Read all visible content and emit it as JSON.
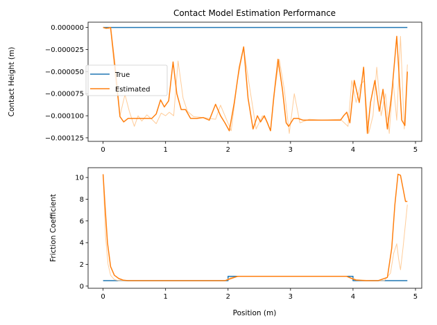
{
  "chart_data": [
    {
      "type": "line",
      "title": "Contact Model Estimation Performance",
      "xlabel": "",
      "ylabel": "Contact Height (m)",
      "xlim": [
        -0.24,
        5.1
      ],
      "ylim": [
        -0.000129,
        6e-06
      ],
      "xticks": [
        0,
        1,
        2,
        3,
        4,
        5
      ],
      "yticks": [
        0.0,
        -2.5e-05,
        -5e-05,
        -7.5e-05,
        -0.0001,
        -0.000125
      ],
      "ytick_labels": [
        "0.000000",
        "−0.000025",
        "−0.000050",
        "−0.000075",
        "−0.000100",
        "−0.000125"
      ],
      "grid": false,
      "legend": "center-left",
      "series": [
        {
          "name": "True",
          "color": "#1f77b4",
          "x": [
            0,
            4.87
          ],
          "y": [
            0,
            0
          ]
        },
        {
          "name": "",
          "color": "#ffcc99",
          "x": [
            0.0,
            0.12,
            0.2,
            0.27,
            0.35,
            0.42,
            0.5,
            0.56,
            0.62,
            0.7,
            0.78,
            0.85,
            0.93,
            1.0,
            1.06,
            1.13,
            1.2,
            1.28,
            1.35,
            1.45,
            1.6,
            1.8,
            1.88,
            1.95,
            2.05,
            2.15,
            2.25,
            2.35,
            2.45,
            2.55,
            2.6,
            2.68,
            2.75,
            2.82,
            2.9,
            2.98,
            3.06,
            3.15,
            3.3,
            3.5,
            3.8,
            3.92,
            3.98,
            4.05,
            4.12,
            4.18,
            4.25,
            4.32,
            4.38,
            4.45,
            4.52,
            4.58,
            4.64,
            4.7,
            4.76,
            4.82,
            4.87
          ],
          "y": [
            0.0,
            -2e-06,
            -6e-05,
            -0.0001,
            -7.6e-05,
            -9.5e-05,
            -0.000112,
            -0.0001,
            -0.000106,
            -9.9e-05,
            -0.000104,
            -0.000109,
            -9.7e-05,
            -0.0001,
            -9.6e-05,
            -0.0001,
            -3.8e-05,
            -8e-05,
            -9.5e-05,
            -0.000101,
            -0.000102,
            -0.000104,
            -8.8e-05,
            -0.0001,
            -0.000117,
            -6e-05,
            -2.3e-05,
            -7e-05,
            -0.000115,
            -0.0001,
            -0.000104,
            -0.000117,
            -7e-05,
            -3.6e-05,
            -7e-05,
            -0.00012,
            -7.5e-05,
            -0.000108,
            -0.000104,
            -0.000105,
            -0.000104,
            -0.000112,
            -6e-05,
            -8.5e-05,
            -6.5e-05,
            -6e-05,
            -0.00012,
            -0.0001,
            -4.5e-05,
            -0.0001,
            -7.5e-05,
            -0.00012,
            -6e-05,
            -0.000105,
            -1e-05,
            -0.000115,
            -4.2e-05
          ]
        },
        {
          "name": "Estimated",
          "color": "#ff7f0e",
          "x": [
            0.0,
            0.05,
            0.12,
            0.2,
            0.27,
            0.33,
            0.4,
            0.47,
            0.55,
            0.62,
            0.7,
            0.78,
            0.85,
            0.92,
            0.98,
            1.05,
            1.12,
            1.18,
            1.25,
            1.32,
            1.4,
            1.5,
            1.6,
            1.7,
            1.8,
            1.88,
            1.95,
            2.02,
            2.1,
            2.18,
            2.25,
            2.32,
            2.4,
            2.47,
            2.52,
            2.58,
            2.63,
            2.68,
            2.73,
            2.8,
            2.87,
            2.93,
            2.97,
            3.05,
            3.12,
            3.2,
            3.3,
            3.4,
            3.5,
            3.6,
            3.7,
            3.8,
            3.85,
            3.9,
            3.95,
            4.02,
            4.1,
            4.17,
            4.23,
            4.28,
            4.35,
            4.42,
            4.48,
            4.55,
            4.62,
            4.7,
            4.78,
            4.83,
            4.87
          ],
          "y": [
            0.0,
            -1e-06,
            0.0,
            -5e-05,
            -0.000101,
            -0.000107,
            -0.000103,
            -0.000103,
            -0.000103,
            -0.000103,
            -0.000103,
            -0.000103,
            -9.8e-05,
            -8.2e-05,
            -9e-05,
            -8.3e-05,
            -3.9e-05,
            -7.5e-05,
            -9.3e-05,
            -9.3e-05,
            -0.000103,
            -0.000103,
            -0.000102,
            -0.000105,
            -8.7e-05,
            -0.0001,
            -0.000108,
            -0.000117,
            -8.5e-05,
            -4.5e-05,
            -2.2e-05,
            -8e-05,
            -0.000115,
            -0.0001,
            -0.000107,
            -0.0001,
            -0.000108,
            -0.000117,
            -8e-05,
            -3.6e-05,
            -7e-05,
            -0.000108,
            -0.000112,
            -0.000103,
            -0.000103,
            -0.000105,
            -0.000105,
            -0.000105,
            -0.000105,
            -0.000105,
            -0.000105,
            -0.000105,
            -0.0001,
            -9.6e-05,
            -0.000108,
            -6e-05,
            -8.5e-05,
            -4.5e-05,
            -0.00012,
            -8.5e-05,
            -6e-05,
            -9.5e-05,
            -7e-05,
            -0.000115,
            -7.5e-05,
            -1e-05,
            -0.000105,
            -0.000111,
            -5e-05
          ]
        }
      ]
    },
    {
      "type": "line",
      "title": "",
      "xlabel": "Position (m)",
      "ylabel": "Friction Coefficient",
      "xlim": [
        -0.24,
        5.1
      ],
      "ylim": [
        -0.2,
        10.9
      ],
      "xticks": [
        0,
        1,
        2,
        3,
        4,
        5
      ],
      "yticks": [
        0,
        2,
        4,
        6,
        8,
        10
      ],
      "grid": false,
      "series": [
        {
          "name": "",
          "color": "#1f77b4",
          "x": [
            0,
            2.0,
            2.0,
            4.0,
            4.0,
            4.87
          ],
          "y": [
            0.5,
            0.5,
            0.9,
            0.9,
            0.5,
            0.5
          ]
        },
        {
          "name": "",
          "color": "#ffcc99",
          "x": [
            0.0,
            0.04,
            0.08,
            0.12,
            0.18,
            0.25,
            0.35,
            0.5,
            1.0,
            1.5,
            1.95,
            2.05,
            2.2,
            3.0,
            3.9,
            4.05,
            4.3,
            4.5,
            4.6,
            4.65,
            4.7,
            4.73,
            4.76,
            4.8,
            4.87
          ],
          "y": [
            10.2,
            4.5,
            2.0,
            1.0,
            0.6,
            0.5,
            0.5,
            0.5,
            0.5,
            0.5,
            0.5,
            0.8,
            0.9,
            0.9,
            0.9,
            0.6,
            0.5,
            0.5,
            1.2,
            3.0,
            3.9,
            2.5,
            1.5,
            3.5,
            7.5
          ]
        },
        {
          "name": "",
          "color": "#ff7f0e",
          "x": [
            0.0,
            0.03,
            0.07,
            0.12,
            0.18,
            0.25,
            0.32,
            0.4,
            0.6,
            1.0,
            1.5,
            1.95,
            2.05,
            2.15,
            2.3,
            3.0,
            3.9,
            3.98,
            4.05,
            4.2,
            4.4,
            4.55,
            4.62,
            4.67,
            4.72,
            4.76,
            4.8,
            4.84,
            4.87
          ],
          "y": [
            10.3,
            7.5,
            4.0,
            1.8,
            1.0,
            0.7,
            0.55,
            0.5,
            0.5,
            0.5,
            0.5,
            0.5,
            0.7,
            0.9,
            0.9,
            0.9,
            0.9,
            0.7,
            0.55,
            0.5,
            0.5,
            0.8,
            3.5,
            7.5,
            10.3,
            10.2,
            9.0,
            7.8,
            7.8
          ]
        }
      ]
    }
  ]
}
